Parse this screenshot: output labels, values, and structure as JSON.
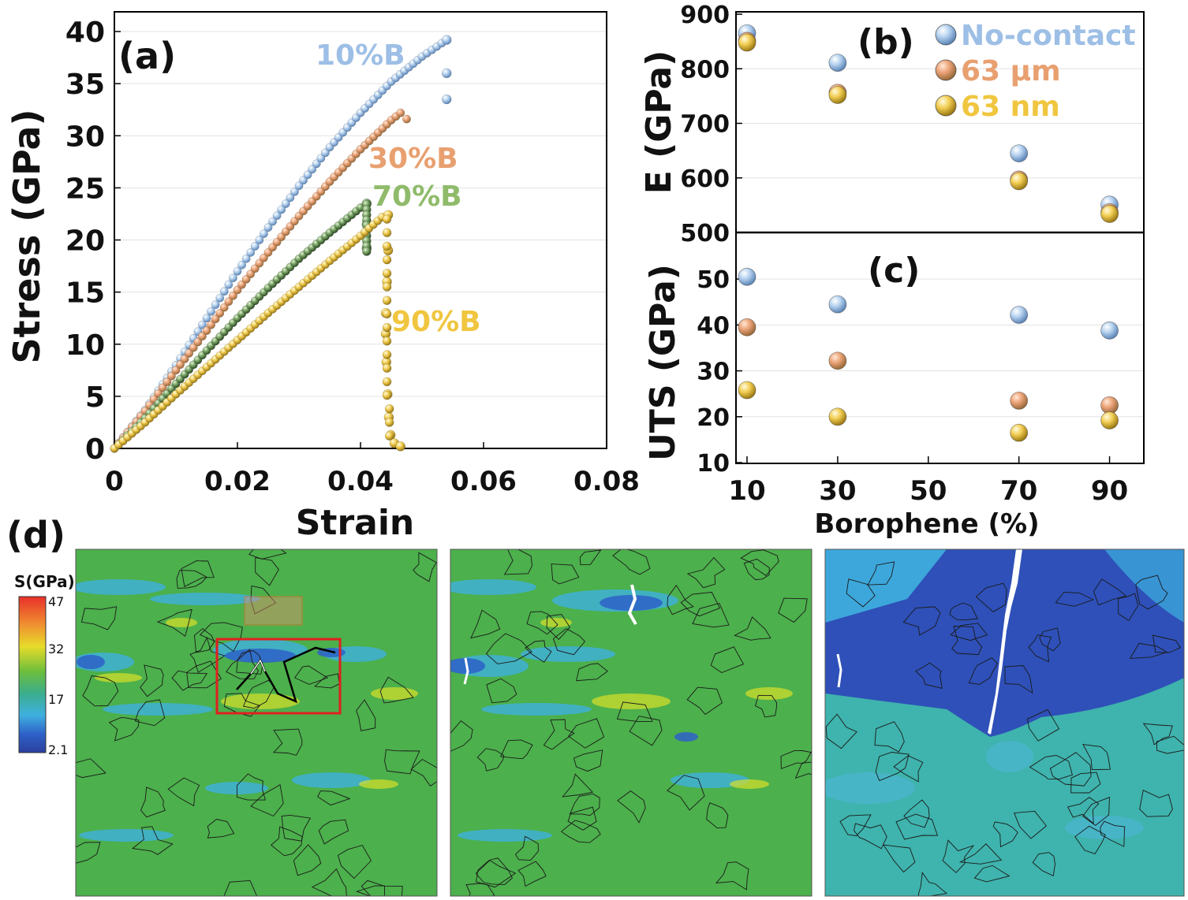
{
  "chart_data": [
    {
      "panel": "(a)",
      "type": "scatter",
      "title": "",
      "xlabel": "Strain",
      "ylabel": "Stress (GPa)",
      "xlim": [
        0,
        0.08
      ],
      "ylim": [
        0,
        40
      ],
      "xticks": [
        0,
        0.02,
        0.04,
        0.06,
        0.08
      ],
      "xtick_labels": [
        "0",
        "0.02",
        "0.04",
        "0.06",
        "0.08"
      ],
      "yticks": [
        0,
        5,
        10,
        15,
        20,
        25,
        30,
        35,
        40
      ],
      "ytick_labels": [
        "0",
        "5",
        "10",
        "15",
        "20",
        "25",
        "30",
        "35",
        "40"
      ],
      "grid": "horizontal",
      "series": [
        {
          "name": "10%B",
          "color": "#9dbfe6",
          "curve": [
            [
              0,
              0
            ],
            [
              0.005,
              3.7
            ],
            [
              0.01,
              8
            ],
            [
              0.015,
              12.5
            ],
            [
              0.02,
              17
            ],
            [
              0.025,
              21.2
            ],
            [
              0.03,
              25.2
            ],
            [
              0.035,
              28.9
            ],
            [
              0.04,
              32.2
            ],
            [
              0.045,
              35.2
            ],
            [
              0.05,
              37.6
            ],
            [
              0.054,
              39.2
            ]
          ],
          "drop": [
            [
              0.054,
              39.2
            ],
            [
              0.054,
              36
            ],
            [
              0.054,
              33.5
            ]
          ]
        },
        {
          "name": "30%B",
          "color": "#e8a070",
          "curve": [
            [
              0,
              0
            ],
            [
              0.005,
              3.6
            ],
            [
              0.01,
              7.5
            ],
            [
              0.015,
              11.3
            ],
            [
              0.02,
              15.2
            ],
            [
              0.025,
              18.8
            ],
            [
              0.03,
              22.3
            ],
            [
              0.035,
              25.6
            ],
            [
              0.04,
              28.7
            ],
            [
              0.045,
              31.5
            ],
            [
              0.0465,
              32.2
            ],
            [
              0.0475,
              31.6
            ]
          ],
          "drop": []
        },
        {
          "name": "70%B",
          "color": "#7da86a",
          "curve": [
            [
              0,
              0
            ],
            [
              0.005,
              2.9
            ],
            [
              0.01,
              6.2
            ],
            [
              0.015,
              9.4
            ],
            [
              0.02,
              12.5
            ],
            [
              0.025,
              15.4
            ],
            [
              0.03,
              18.2
            ],
            [
              0.035,
              20.7
            ],
            [
              0.04,
              23.1
            ],
            [
              0.041,
              23.5
            ]
          ],
          "drop": [
            [
              0.041,
              23.5
            ],
            [
              0.041,
              21.5
            ],
            [
              0.041,
              19.2
            ]
          ]
        },
        {
          "name": "90%B",
          "color": "#f0c640",
          "curve": [
            [
              0,
              0
            ],
            [
              0.005,
              2.5
            ],
            [
              0.01,
              5.2
            ],
            [
              0.015,
              7.8
            ],
            [
              0.02,
              10.4
            ],
            [
              0.025,
              13
            ],
            [
              0.03,
              15.5
            ],
            [
              0.035,
              18
            ],
            [
              0.04,
              20.4
            ],
            [
              0.0435,
              22.2
            ],
            [
              0.0445,
              22.4
            ]
          ],
          "drop": [
            [
              0.0445,
              22.4
            ],
            [
              0.0445,
              19
            ],
            [
              0.0443,
              16
            ],
            [
              0.0441,
              13
            ],
            [
              0.0441,
              11
            ],
            [
              0.0442,
              8.3
            ],
            [
              0.0444,
              5.2
            ],
            [
              0.0446,
              3
            ],
            [
              0.0449,
              1.3
            ],
            [
              0.0455,
              0.5
            ],
            [
              0.0465,
              0.2
            ]
          ]
        }
      ],
      "annotations": [
        {
          "text": "(a)"
        },
        {
          "text": "10%B",
          "color": "#9dbfe6"
        },
        {
          "text": "30%B",
          "color": "#e8a070"
        },
        {
          "text": "70%B",
          "color": "#8fbb6a"
        },
        {
          "text": "90%B",
          "color": "#f0c640"
        }
      ]
    },
    {
      "panel": "(b)",
      "type": "scatter",
      "title": "",
      "xlabel": "",
      "ylabel": "E (GPa)",
      "xlim": [
        10,
        100
      ],
      "ylim": [
        500,
        900
      ],
      "yticks": [
        500,
        600,
        700,
        800,
        900
      ],
      "ytick_labels": [
        "500",
        "600",
        "700",
        "800",
        "900"
      ],
      "grid": "horizontal",
      "legend": "top-right",
      "categories": [
        10,
        30,
        70,
        90
      ],
      "series": [
        {
          "name": "No-contact",
          "color": "#9dbfe6",
          "values": [
            865,
            811,
            645,
            551
          ]
        },
        {
          "name": "63 µm",
          "color": "#e8a070",
          "values": [
            851,
            756,
            597,
            537
          ]
        },
        {
          "name": "63 nm",
          "color": "#f0c640",
          "values": [
            848,
            752,
            594,
            534
          ]
        }
      ]
    },
    {
      "panel": "(c)",
      "type": "scatter",
      "title": "",
      "xlabel": "Borophene (%)",
      "ylabel": "UTS (GPa)",
      "xlim": [
        10,
        100
      ],
      "ylim": [
        10,
        55
      ],
      "xticks": [
        10,
        30,
        50,
        70,
        90
      ],
      "xtick_labels": [
        "10",
        "30",
        "50",
        "70",
        "90"
      ],
      "yticks": [
        10,
        20,
        30,
        40,
        50
      ],
      "ytick_labels": [
        "10",
        "20",
        "30",
        "40",
        "50"
      ],
      "grid": "horizontal",
      "categories": [
        10,
        30,
        70,
        90
      ],
      "series": [
        {
          "name": "No-contact",
          "color": "#9dbfe6",
          "values": [
            50.5,
            44.5,
            42.2,
            38.8
          ]
        },
        {
          "name": "63 µm",
          "color": "#e8a070",
          "values": [
            39.5,
            32.2,
            23.5,
            22.5
          ]
        },
        {
          "name": "63 nm",
          "color": "#f0c640",
          "values": [
            25.8,
            20,
            16.5,
            19.2
          ]
        }
      ]
    },
    {
      "panel": "(d)",
      "type": "heatmap",
      "title": "",
      "colorbar_label": "S(GPa)",
      "colorbar_ticks": [
        "47",
        "32",
        "17",
        "2.1"
      ],
      "frames": [
        {
          "name": "frame-1",
          "base_color": "#4cb04c"
        },
        {
          "name": "frame-2",
          "base_color": "#4cb04c"
        },
        {
          "name": "frame-3",
          "base_color": "#3fb3ad"
        }
      ]
    }
  ],
  "labels": {
    "panel_a": "(a)",
    "panel_b": "(b)",
    "panel_c": "(c)",
    "panel_d": "(d)"
  }
}
